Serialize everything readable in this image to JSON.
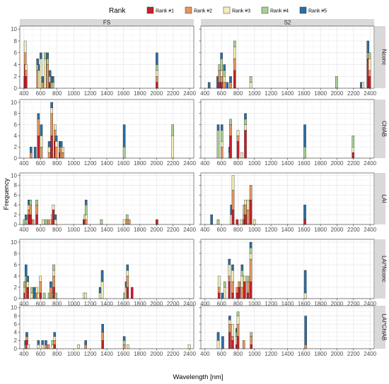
{
  "chart_data": {
    "type": "bar",
    "stacked": true,
    "xlabel": "Wavelength [nm]",
    "ylabel": "Frequency",
    "xlim": [
      350,
      2450
    ],
    "ylim": [
      0,
      10.5
    ],
    "x_ticks": [
      400,
      600,
      800,
      1000,
      1200,
      1400,
      1600,
      1800,
      2000,
      2200,
      2400
    ],
    "y_ticks": [
      0,
      2,
      4,
      6,
      8,
      10
    ],
    "grid": true,
    "legend": {
      "title": "Rank",
      "position": "top",
      "entries": [
        "Rank #1",
        "Rank #2",
        "Rank #3",
        "Rank #4",
        "Rank #5"
      ]
    },
    "colors": {
      "Rank #1": "#c8202a",
      "Rank #2": "#e8955a",
      "Rank #3": "#f4efb9",
      "Rank #4": "#a8d092",
      "Rank #5": "#2b6ea3"
    },
    "columns": [
      "FS",
      "S2"
    ],
    "rows": [
      "Nconc",
      "ChlAB",
      "LAI",
      "LAI*Nconc",
      "LAI*ChlAB"
    ],
    "panels": [
      [
        [
          [
            410,
            0,
            0,
            2,
            0,
            0
          ],
          [
            415,
            4,
            2,
            2,
            0,
            0
          ],
          [
            425,
            2,
            1,
            1,
            0,
            0
          ],
          [
            565,
            0,
            3,
            0,
            1,
            1
          ],
          [
            585,
            0,
            0,
            3,
            0,
            1
          ],
          [
            605,
            0,
            0,
            5,
            0,
            1
          ],
          [
            625,
            0,
            1,
            0,
            0,
            1
          ],
          [
            655,
            0,
            0,
            5,
            1,
            0
          ],
          [
            685,
            0,
            4,
            0,
            1,
            1
          ],
          [
            715,
            1,
            0,
            1,
            0,
            1
          ],
          [
            735,
            0,
            0,
            0,
            1,
            1
          ],
          [
            750,
            0,
            0,
            0,
            1,
            1
          ],
          [
            2005,
            1,
            1,
            1,
            1,
            2
          ]
        ],
        [
          [
            450,
            0,
            0,
            0,
            0,
            1
          ],
          [
            555,
            0,
            0,
            0,
            0,
            2
          ],
          [
            575,
            1,
            2,
            0,
            1,
            0
          ],
          [
            600,
            1,
            1,
            1,
            2,
            1
          ],
          [
            635,
            0,
            1,
            1,
            1,
            1
          ],
          [
            670,
            0,
            0,
            0,
            0,
            1
          ],
          [
            710,
            0,
            1,
            0,
            0,
            1
          ],
          [
            760,
            3,
            2,
            2,
            1,
            0
          ],
          [
            955,
            0,
            0,
            1,
            1,
            0
          ],
          [
            1995,
            0,
            0,
            0,
            2,
            0
          ],
          [
            2295,
            0,
            0,
            0,
            0,
            1
          ],
          [
            2315,
            0,
            0,
            1,
            0,
            0
          ],
          [
            2375,
            5,
            1,
            0,
            0,
            2
          ],
          [
            2395,
            2,
            1,
            2,
            1,
            0
          ]
        ]
      ],
      [
        [
          [
            485,
            0,
            1,
            0,
            0,
            1
          ],
          [
            535,
            0,
            0,
            0,
            0,
            2
          ],
          [
            575,
            4,
            3,
            0,
            0,
            1
          ],
          [
            610,
            0,
            2,
            2,
            0,
            2
          ],
          [
            705,
            0,
            1,
            1,
            0,
            1
          ],
          [
            735,
            4,
            4,
            1,
            0,
            1
          ],
          [
            775,
            3,
            2,
            1,
            0,
            0
          ],
          [
            790,
            0,
            2,
            1,
            0,
            1
          ],
          [
            835,
            1,
            1,
            0,
            0,
            1
          ],
          [
            850,
            0,
            2,
            0,
            0,
            1
          ],
          [
            870,
            0,
            1,
            1,
            0,
            0
          ],
          [
            1610,
            0,
            0,
            0,
            2,
            4
          ],
          [
            2195,
            0,
            0,
            4,
            2,
            0
          ]
        ],
        [
          [
            560,
            0,
            0,
            0,
            5,
            1
          ],
          [
            605,
            0,
            2,
            1,
            2,
            1
          ],
          [
            700,
            0,
            0,
            0,
            1,
            1
          ],
          [
            710,
            4,
            2,
            0,
            1,
            0
          ],
          [
            800,
            3,
            1,
            1,
            0,
            0
          ],
          [
            845,
            0,
            0,
            1,
            0,
            0
          ],
          [
            890,
            5,
            0,
            1,
            1,
            1
          ],
          [
            1610,
            0,
            0,
            0,
            2,
            4
          ],
          [
            2195,
            1,
            0,
            1,
            2,
            0
          ]
        ]
      ],
      [
        [
          [
            405,
            0,
            0,
            0,
            1,
            0
          ],
          [
            425,
            0,
            0,
            0,
            1,
            1
          ],
          [
            445,
            0,
            0,
            1,
            0,
            0
          ],
          [
            460,
            2,
            1,
            1,
            0,
            1
          ],
          [
            480,
            2,
            2,
            0,
            1,
            0
          ],
          [
            510,
            0,
            1,
            0,
            0,
            0
          ],
          [
            555,
            2,
            2,
            0,
            1,
            0
          ],
          [
            630,
            0,
            0,
            1,
            0,
            0
          ],
          [
            665,
            0,
            0,
            0,
            1,
            0
          ],
          [
            700,
            0,
            1,
            0,
            0,
            0
          ],
          [
            740,
            0,
            1,
            1,
            0,
            0
          ],
          [
            755,
            3,
            0,
            1,
            0,
            0
          ],
          [
            780,
            0,
            0,
            1,
            0,
            1
          ],
          [
            1125,
            0,
            0,
            0,
            0,
            1
          ],
          [
            1135,
            1,
            0,
            1,
            0,
            0
          ],
          [
            1150,
            0,
            1,
            1,
            2,
            1
          ],
          [
            1335,
            0,
            0,
            0,
            1,
            0
          ],
          [
            1610,
            0,
            0,
            1,
            0,
            0
          ],
          [
            1645,
            0,
            1,
            0,
            1,
            0
          ],
          [
            1670,
            0,
            1,
            0,
            0,
            0
          ],
          [
            2005,
            1,
            0,
            0,
            0,
            0
          ]
        ],
        [
          [
            480,
            0,
            0,
            0,
            0,
            2
          ],
          [
            560,
            0,
            0,
            0,
            1,
            0
          ],
          [
            720,
            0,
            0,
            2,
            0,
            2
          ],
          [
            740,
            3,
            4,
            3,
            0,
            0
          ],
          [
            790,
            1,
            0,
            0,
            0,
            0
          ],
          [
            840,
            0,
            0,
            1,
            0,
            0
          ],
          [
            875,
            1,
            1,
            0,
            2,
            0
          ],
          [
            890,
            2,
            2,
            1,
            0,
            0
          ],
          [
            920,
            0,
            3,
            2,
            0,
            0
          ],
          [
            955,
            5,
            3,
            0,
            0,
            0
          ],
          [
            1000,
            0,
            0,
            1,
            0,
            0
          ],
          [
            1610,
            1,
            0,
            0,
            0,
            3
          ]
        ]
      ],
      [
        [
          [
            410,
            1,
            0,
            1,
            1,
            0
          ],
          [
            425,
            0,
            3,
            0,
            1,
            2
          ],
          [
            445,
            2,
            0,
            1,
            0,
            1
          ],
          [
            495,
            0,
            0,
            1,
            1,
            0
          ],
          [
            525,
            0,
            0,
            0,
            0,
            2
          ],
          [
            555,
            0,
            1,
            1,
            0,
            0
          ],
          [
            575,
            0,
            0,
            1,
            0,
            0
          ],
          [
            600,
            1,
            2,
            1,
            0,
            0
          ],
          [
            645,
            0,
            0,
            0,
            1,
            0
          ],
          [
            705,
            0,
            0,
            0,
            1,
            0
          ],
          [
            725,
            0,
            2,
            0,
            0,
            1
          ],
          [
            745,
            0,
            0,
            0,
            1,
            0
          ],
          [
            760,
            2,
            2,
            1,
            1,
            0
          ],
          [
            785,
            0,
            0,
            0,
            1,
            0
          ],
          [
            1130,
            0,
            0,
            1,
            0,
            0
          ],
          [
            1145,
            0,
            0,
            1,
            0,
            0
          ],
          [
            1320,
            0,
            0,
            1,
            0,
            1
          ],
          [
            1345,
            0,
            0,
            3,
            0,
            2
          ],
          [
            1615,
            0,
            0,
            0,
            1,
            0
          ],
          [
            1635,
            0,
            0,
            2,
            0,
            1
          ],
          [
            1650,
            2,
            2,
            1,
            0,
            1
          ],
          [
            1705,
            2,
            0,
            0,
            0,
            0
          ]
        ],
        [
          [
            570,
            1,
            1,
            2,
            0,
            0
          ],
          [
            610,
            0,
            0,
            0,
            0,
            1
          ],
          [
            640,
            0,
            0,
            2,
            1,
            0
          ],
          [
            695,
            3,
            1,
            2,
            0,
            1
          ],
          [
            735,
            1,
            2,
            2,
            0,
            1
          ],
          [
            790,
            1,
            1,
            0,
            0,
            0
          ],
          [
            815,
            2,
            1,
            0,
            0,
            0
          ],
          [
            850,
            0,
            2,
            2,
            1,
            1
          ],
          [
            880,
            3,
            0,
            1,
            0,
            0
          ],
          [
            920,
            1,
            2,
            0,
            1,
            0
          ],
          [
            955,
            3,
            4,
            1,
            1,
            1
          ],
          [
            1615,
            0,
            0,
            1,
            0,
            4
          ]
        ]
      ],
      [
        [
          [
            420,
            0,
            1,
            0,
            0,
            1
          ],
          [
            435,
            2,
            1,
            0,
            0,
            1
          ],
          [
            445,
            0,
            0,
            1,
            0,
            0
          ],
          [
            455,
            0,
            0,
            1,
            0,
            0
          ],
          [
            575,
            0,
            0,
            1,
            0,
            1
          ],
          [
            625,
            0,
            0,
            1,
            0,
            1
          ],
          [
            665,
            0,
            1,
            0,
            0,
            1
          ],
          [
            695,
            0,
            1,
            0,
            0,
            0
          ],
          [
            745,
            0,
            0,
            1,
            1,
            0
          ],
          [
            770,
            1,
            1,
            1,
            0,
            1
          ],
          [
            1060,
            0,
            0,
            1,
            0,
            0
          ],
          [
            1145,
            0,
            1,
            0,
            0,
            1
          ],
          [
            1350,
            2,
            2,
            0,
            0,
            2
          ],
          [
            1610,
            0,
            1,
            0,
            1,
            1
          ],
          [
            1655,
            0,
            0,
            1,
            0,
            0
          ],
          [
            2395,
            0,
            0,
            1,
            0,
            0
          ]
        ],
        [
          [
            560,
            0,
            0,
            2,
            0,
            2
          ],
          [
            615,
            0,
            0,
            0,
            0,
            3
          ],
          [
            700,
            4,
            2,
            1,
            0,
            1
          ],
          [
            735,
            2,
            1,
            3,
            0,
            0
          ],
          [
            785,
            1,
            0,
            2,
            1,
            1
          ],
          [
            800,
            3,
            3,
            2,
            1,
            0
          ],
          [
            870,
            0,
            2,
            0,
            0,
            0
          ],
          [
            960,
            1,
            2,
            0,
            1,
            0
          ],
          [
            1620,
            0,
            1,
            0,
            0,
            7
          ]
        ]
      ]
    ]
  }
}
